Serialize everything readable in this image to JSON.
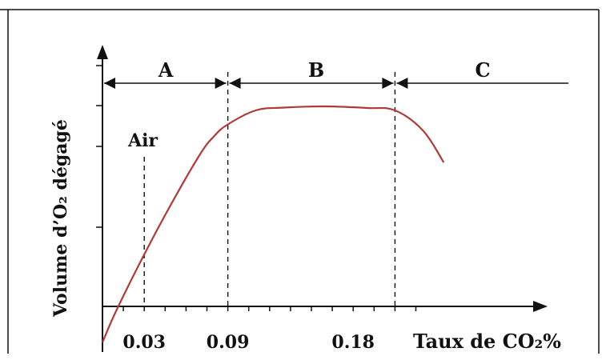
{
  "chart_data": {
    "type": "line",
    "ylabel": "Volume d’O₂ dégagé",
    "xlabel": "Taux de CO₂%",
    "x_tick_labels": [
      "0.03",
      "0.09",
      "0.18"
    ],
    "x_ticks": [
      0.03,
      0.09,
      0.18
    ],
    "xlim": [
      0,
      0.25
    ],
    "annotations": {
      "air_label": "Air",
      "air_x": 0.03
    },
    "regions": [
      {
        "label": "A",
        "from": 0,
        "to": 0.09
      },
      {
        "label": "B",
        "from": 0.09,
        "to": 0.21
      },
      {
        "label": "C",
        "from": 0.21,
        "to": 0.25
      }
    ],
    "series": [
      {
        "color": "#b03a3a",
        "x": [
          0.0,
          0.01,
          0.03,
          0.05,
          0.07,
          0.08,
          0.09,
          0.11,
          0.13,
          0.16,
          0.19,
          0.21,
          0.23,
          0.245
        ],
        "y": [
          -0.9,
          -0.1,
          1.3,
          2.6,
          3.8,
          4.25,
          4.55,
          4.9,
          4.97,
          5.0,
          4.96,
          4.9,
          4.4,
          3.6
        ]
      }
    ],
    "ylim": [
      -1,
      6
    ]
  }
}
